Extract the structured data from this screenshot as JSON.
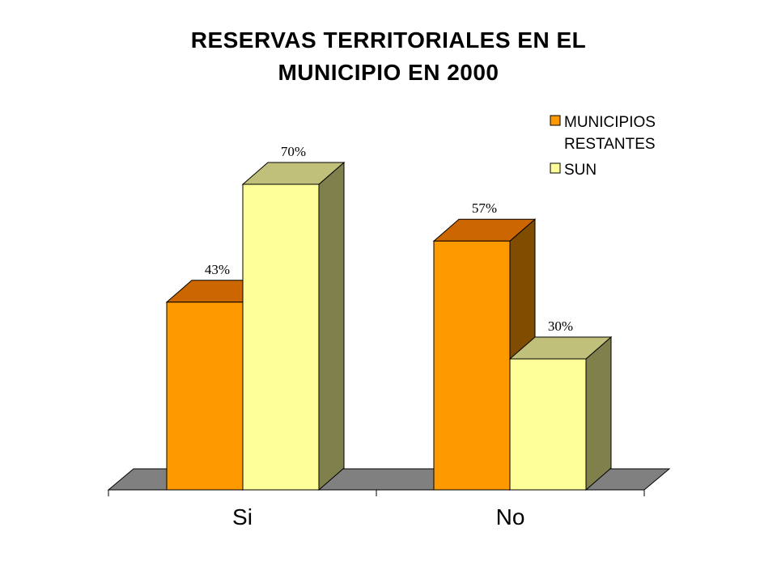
{
  "chart_data": {
    "type": "bar",
    "title_lines": [
      "RESERVAS TERRITORIALES EN EL",
      "MUNICIPIO EN 2000"
    ],
    "categories": [
      "Si",
      "No"
    ],
    "series": [
      {
        "name": "MUNICIPIOS RESTANTES",
        "values": [
          43,
          57
        ],
        "labels": [
          "43%",
          "57%"
        ],
        "color": "#FF9900",
        "top_color": "#CC6600",
        "side_color": "#804C00"
      },
      {
        "name": "SUN",
        "values": [
          70,
          30
        ],
        "labels": [
          "70%",
          "30%"
        ],
        "color": "#FFFF99",
        "top_color": "#C0C07A",
        "side_color": "#80804C"
      }
    ],
    "legend_lines": [
      [
        "MUNICIPIOS",
        "RESTANTES"
      ],
      [
        "SUN"
      ]
    ],
    "legend_position": "top-right",
    "ylim": [
      0,
      70
    ],
    "three_d": true,
    "grid": false,
    "floor_color": "#808080"
  }
}
